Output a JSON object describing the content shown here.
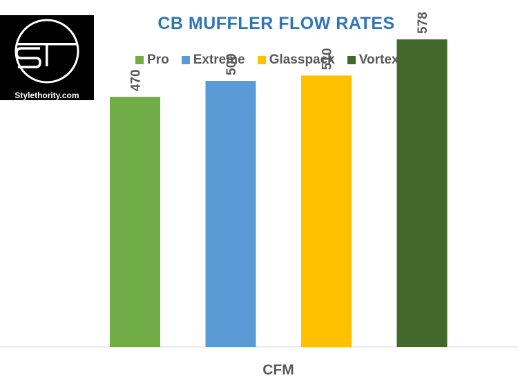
{
  "logo": {
    "mark_text": "ST",
    "caption": "Stylethority.com"
  },
  "chart_data": {
    "type": "bar",
    "title": "CB MUFFLER FLOW RATES",
    "xlabel": "CFM",
    "ylabel": "",
    "categories": [
      "CFM"
    ],
    "series": [
      {
        "name": "Pro",
        "values": [
          470
        ],
        "color": "#70ad47"
      },
      {
        "name": "Extreme",
        "values": [
          500
        ],
        "color": "#5b9bd5"
      },
      {
        "name": "Glasspack",
        "values": [
          510
        ],
        "color": "#ffc000"
      },
      {
        "name": "Vortex",
        "values": [
          578
        ],
        "color": "#43682b"
      }
    ],
    "ylim": [
      0,
      600
    ],
    "grid": false,
    "legend": "top",
    "data_labels": true
  }
}
